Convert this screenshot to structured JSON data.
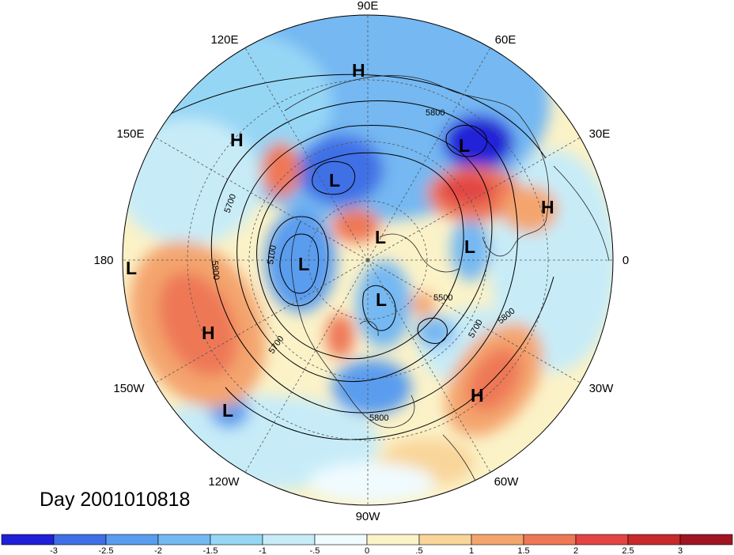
{
  "map": {
    "projection": "north polar stereographic",
    "longitude_labels": [
      "90E",
      "60E",
      "30E",
      "0",
      "30W",
      "60W",
      "90W",
      "120W",
      "150W",
      "180",
      "150E",
      "120E"
    ],
    "date_label": "Day 2001010818",
    "pressure_centers": [
      {
        "type": "H",
        "region": "north-central Asia"
      },
      {
        "type": "H",
        "region": "east Siberia"
      },
      {
        "type": "L",
        "region": "Ural region"
      },
      {
        "type": "L",
        "region": "Sea of Okhotsk"
      },
      {
        "type": "H",
        "region": "Mediterranean/Middle East"
      },
      {
        "type": "L",
        "region": "Arctic Ocean"
      },
      {
        "type": "L",
        "region": "Norwegian Sea"
      },
      {
        "type": "L",
        "region": "Bering Sea"
      },
      {
        "type": "L",
        "region": "far west (dateline)"
      },
      {
        "type": "L",
        "region": "Hudson Bay"
      },
      {
        "type": "H",
        "region": "north central Pacific"
      },
      {
        "type": "H",
        "region": "central Atlantic"
      },
      {
        "type": "L",
        "region": "subtropical Pacific"
      }
    ],
    "contour_labels": [
      "5800",
      "5700",
      "5100",
      "5800",
      "5500",
      "5700",
      "5800",
      "5700",
      "5800"
    ],
    "colorbar": {
      "ticks": [
        "-3",
        "-2.5",
        "-2",
        "-1.5",
        "-1",
        "-.5",
        "0",
        ".5",
        "1",
        "1.5",
        "2",
        "2.5",
        "3"
      ],
      "colors": [
        "#2020d8",
        "#3f6fe6",
        "#5a9cee",
        "#74b8f2",
        "#96d6f5",
        "#c7ecf8",
        "#f0fbff",
        "#fbf2c8",
        "#f9d59a",
        "#f4a56e",
        "#ee7856",
        "#e24444",
        "#c62a2a",
        "#a01522"
      ]
    }
  }
}
